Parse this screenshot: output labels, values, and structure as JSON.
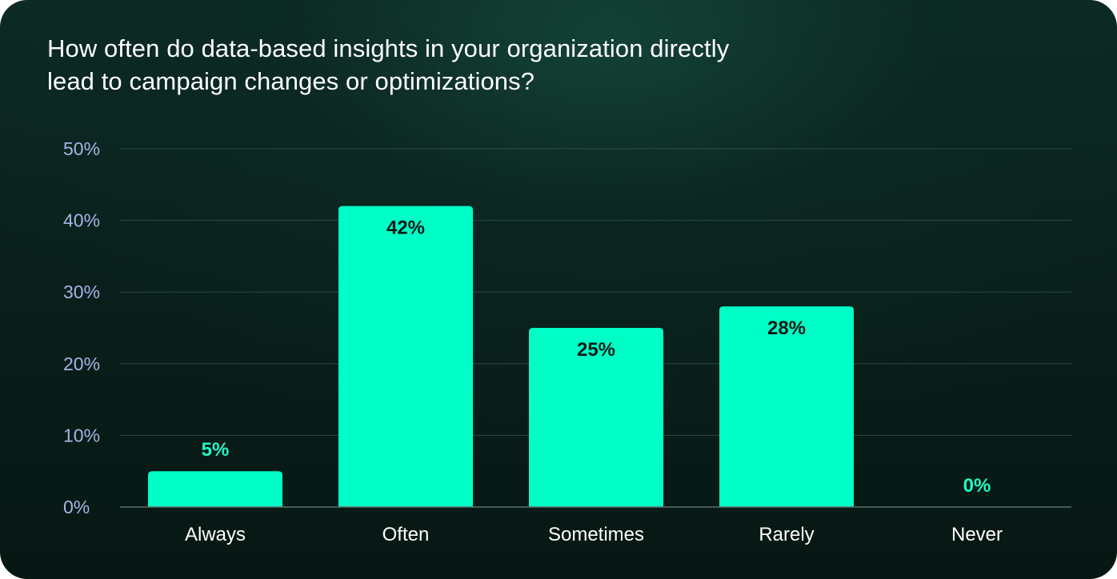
{
  "chart_data": {
    "type": "bar",
    "title": "How often do data-based insights in your organization directly lead to campaign changes or optimizations?",
    "categories": [
      "Always",
      "Often",
      "Sometimes",
      "Rarely",
      "Never"
    ],
    "values": [
      5,
      42,
      25,
      28,
      0
    ],
    "value_labels": [
      "5%",
      "42%",
      "25%",
      "28%",
      "0%"
    ],
    "yticks": [
      "0%",
      "10%",
      "20%",
      "30%",
      "40%",
      "50%"
    ],
    "ylim": [
      0,
      50
    ],
    "xlabel": "",
    "ylabel": "",
    "grid": true,
    "legend": "none",
    "colors": {
      "bar": "#00ffc6",
      "label_inside": "#0b1a16",
      "label_outside": "#25f5c3",
      "grid": "#2c4a43",
      "axis": "#5a716b",
      "ytick": "#a7b4e6",
      "xtick": "#ffffff"
    }
  }
}
